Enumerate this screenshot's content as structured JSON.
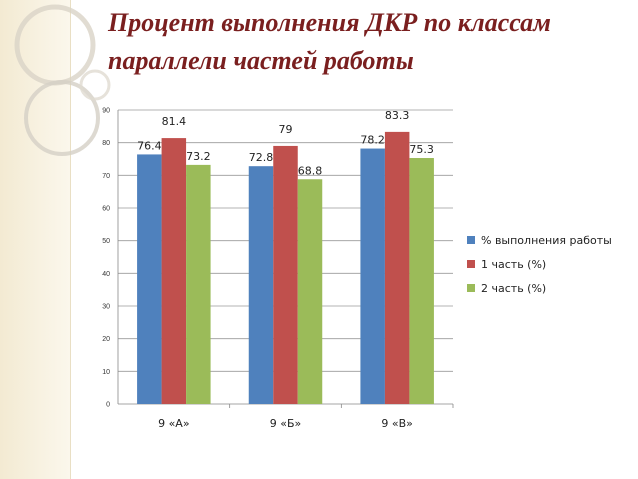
{
  "title": {
    "line1": "Процент выполнения ДКР по классам",
    "line2": "параллели частей работы"
  },
  "colors": {
    "title": "#7a1f1f",
    "series": [
      "#4f81bd",
      "#c0504d",
      "#9bbb59"
    ]
  },
  "chart_data": {
    "type": "bar",
    "categories": [
      "9 «А»",
      "9 «Б»",
      "9 «В»"
    ],
    "series": [
      {
        "name": "% выполнения работы",
        "values": [
          76.4,
          72.8,
          78.2
        ]
      },
      {
        "name": "1 часть (%)",
        "values": [
          81.4,
          79,
          83.3
        ]
      },
      {
        "name": "2 часть (%)",
        "values": [
          73.2,
          68.8,
          75.3
        ]
      }
    ],
    "ylim": [
      0,
      90
    ],
    "yticks": [
      0,
      10,
      20,
      30,
      40,
      50,
      60,
      70,
      80,
      90
    ],
    "grid": true,
    "legend": "right"
  }
}
